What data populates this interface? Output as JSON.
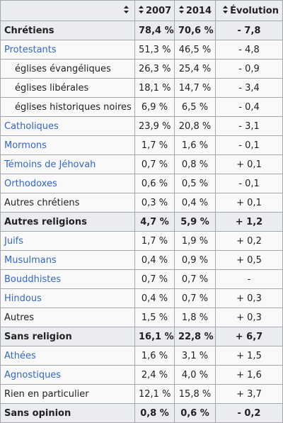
{
  "header": {
    "col_2007": "2007",
    "col_2014": "2014",
    "col_evolution": "Évolution"
  },
  "rows": [
    {
      "label": "Chrétiens",
      "v2007": "78,4 %",
      "v2014": "70,6 %",
      "evo": "- 7,8",
      "type": "group",
      "link": false,
      "indent": false
    },
    {
      "label": "Protestants",
      "v2007": "51,3 %",
      "v2014": "46,5 %",
      "evo": "- 4,8",
      "type": "row",
      "link": true,
      "indent": false
    },
    {
      "label": "églises évangéliques",
      "v2007": "26,3 %",
      "v2014": "25,4 %",
      "evo": "- 0,9",
      "type": "row",
      "link": false,
      "indent": true
    },
    {
      "label": "églises libérales",
      "v2007": "18,1 %",
      "v2014": "14,7 %",
      "evo": "- 3,4",
      "type": "row",
      "link": false,
      "indent": true
    },
    {
      "label": "églises historiques noires",
      "v2007": "6,9 %",
      "v2014": "6,5 %",
      "evo": "- 0,4",
      "type": "row",
      "link": false,
      "indent": true
    },
    {
      "label": "Catholiques",
      "v2007": "23,9 %",
      "v2014": "20,8 %",
      "evo": "- 3,1",
      "type": "row",
      "link": true,
      "indent": false
    },
    {
      "label": "Mormons",
      "v2007": "1,7 %",
      "v2014": "1,6 %",
      "evo": "- 0,1",
      "type": "row",
      "link": true,
      "indent": false
    },
    {
      "label": "Témoins de Jéhovah",
      "v2007": "0,7 %",
      "v2014": "0,8 %",
      "evo": "+ 0,1",
      "type": "row",
      "link": true,
      "indent": false
    },
    {
      "label": "Orthodoxes",
      "v2007": "0,6 %",
      "v2014": "0,5 %",
      "evo": "- 0,1",
      "type": "row",
      "link": true,
      "indent": false
    },
    {
      "label": "Autres chrétiens",
      "v2007": "0,3 %",
      "v2014": "0,4 %",
      "evo": "+ 0,1",
      "type": "row",
      "link": false,
      "indent": false
    },
    {
      "label": "Autres religions",
      "v2007": "4,7 %",
      "v2014": "5,9 %",
      "evo": "+ 1,2",
      "type": "group",
      "link": false,
      "indent": false
    },
    {
      "label": "Juifs",
      "v2007": "1,7 %",
      "v2014": "1,9 %",
      "evo": "+ 0,2",
      "type": "row",
      "link": true,
      "indent": false
    },
    {
      "label": "Musulmans",
      "v2007": "0,4 %",
      "v2014": "0,9 %",
      "evo": "+ 0,5",
      "type": "row",
      "link": true,
      "indent": false
    },
    {
      "label": "Bouddhistes",
      "v2007": "0,7 %",
      "v2014": "0,7 %",
      "evo": "-",
      "type": "row",
      "link": true,
      "indent": false
    },
    {
      "label": "Hindous",
      "v2007": "0,4 %",
      "v2014": "0,7 %",
      "evo": "+ 0,3",
      "type": "row",
      "link": true,
      "indent": false
    },
    {
      "label": "Autres",
      "v2007": "1,5 %",
      "v2014": "1,8 %",
      "evo": "+ 0,3",
      "type": "row",
      "link": false,
      "indent": false
    },
    {
      "label": "Sans religion",
      "v2007": "16,1 %",
      "v2014": "22,8 %",
      "evo": "+ 6,7",
      "type": "group",
      "link": false,
      "indent": false
    },
    {
      "label": "Athées",
      "v2007": "1,6 %",
      "v2014": "3,1 %",
      "evo": "+ 1,5",
      "type": "row",
      "link": true,
      "indent": false
    },
    {
      "label": "Agnostiques",
      "v2007": "2,4 %",
      "v2014": "4,0 %",
      "evo": "+ 1,6",
      "type": "row",
      "link": true,
      "indent": false
    },
    {
      "label": "Rien en particulier",
      "v2007": "12,1 %",
      "v2014": "15,8 %",
      "evo": "+ 3,7",
      "type": "row",
      "link": false,
      "indent": false
    },
    {
      "label": "Sans opinion",
      "v2007": "0,8 %",
      "v2014": "0,6 %",
      "evo": "- 0,2",
      "type": "group",
      "link": false,
      "indent": false
    }
  ],
  "colors": {
    "link": "#3366cc",
    "header_bg": "#eaecf0",
    "border": "#a2a9b1",
    "cell_bg": "#f9f9f9"
  },
  "icons": {
    "sort": "sort-arrows-icon"
  }
}
